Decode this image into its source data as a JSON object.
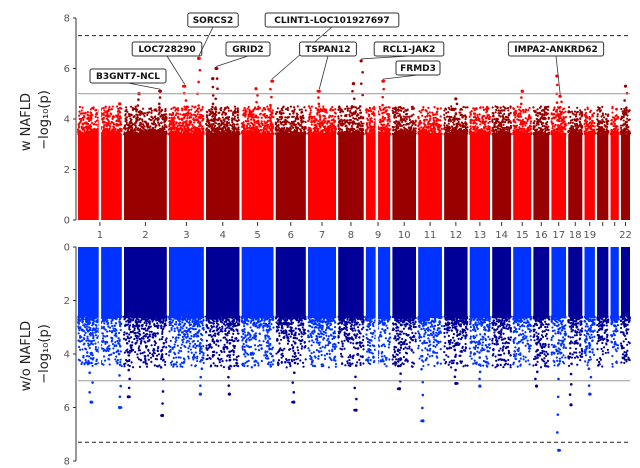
{
  "chart_data": [
    {
      "type": "scatter",
      "subtype": "manhattan",
      "name": "top",
      "ylabel_line1": "w NAFLD",
      "ylabel_line2": "−log₁₀(p)",
      "ylim": [
        0,
        8
      ],
      "yticks": [
        "0",
        "2",
        "4",
        "6",
        "8"
      ],
      "suggestive_line": 5,
      "significance_line": 7.3,
      "palette": [
        "#ff0000",
        "#990000"
      ],
      "peaks": [
        {
          "chr": 1,
          "pos": 0.95,
          "val": 4.6
        },
        {
          "chr": 2,
          "pos": 0.35,
          "val": 5.0
        },
        {
          "chr": 2,
          "pos": 0.85,
          "val": 5.1
        },
        {
          "chr": 3,
          "pos": 0.45,
          "val": 5.3
        },
        {
          "chr": 3,
          "pos": 0.85,
          "val": 6.4
        },
        {
          "chr": 4,
          "pos": 0.2,
          "val": 5.6
        },
        {
          "chr": 4,
          "pos": 0.3,
          "val": 6.0
        },
        {
          "chr": 5,
          "pos": 0.45,
          "val": 5.2
        },
        {
          "chr": 5,
          "pos": 0.95,
          "val": 5.5
        },
        {
          "chr": 7,
          "pos": 0.4,
          "val": 5.1
        },
        {
          "chr": 8,
          "pos": 0.6,
          "val": 5.4
        },
        {
          "chr": 8,
          "pos": 0.9,
          "val": 6.3
        },
        {
          "chr": 9,
          "pos": 0.7,
          "val": 5.5
        },
        {
          "chr": 12,
          "pos": 0.5,
          "val": 4.8
        },
        {
          "chr": 15,
          "pos": 0.5,
          "val": 5.1
        },
        {
          "chr": 17,
          "pos": 0.4,
          "val": 5.7
        },
        {
          "chr": 17,
          "pos": 0.6,
          "val": 4.9
        },
        {
          "chr": 22,
          "pos": 0.5,
          "val": 5.3
        }
      ]
    },
    {
      "type": "scatter",
      "subtype": "manhattan",
      "name": "bottom",
      "ylabel_line1": "w/o NAFLD",
      "ylabel_line2": "−log₁₀(p)",
      "ylim": [
        0,
        8
      ],
      "y_inverted": true,
      "yticks": [
        "0",
        "2",
        "4",
        "6",
        "8"
      ],
      "suggestive_line": 5,
      "significance_line": 7.3,
      "palette": [
        "#0033ff",
        "#000099"
      ],
      "peaks": [
        {
          "chr": 1,
          "pos": 0.3,
          "val": 5.8
        },
        {
          "chr": 1,
          "pos": 0.95,
          "val": 6.0
        },
        {
          "chr": 2,
          "pos": 0.1,
          "val": 5.6
        },
        {
          "chr": 2,
          "pos": 0.9,
          "val": 6.3
        },
        {
          "chr": 3,
          "pos": 0.9,
          "val": 5.5
        },
        {
          "chr": 4,
          "pos": 0.7,
          "val": 5.5
        },
        {
          "chr": 6,
          "pos": 0.6,
          "val": 5.8
        },
        {
          "chr": 8,
          "pos": 0.7,
          "val": 6.1
        },
        {
          "chr": 10,
          "pos": 0.3,
          "val": 5.3
        },
        {
          "chr": 11,
          "pos": 0.2,
          "val": 6.5
        },
        {
          "chr": 12,
          "pos": 0.5,
          "val": 5.1
        },
        {
          "chr": 13,
          "pos": 0.5,
          "val": 5.2
        },
        {
          "chr": 16,
          "pos": 0.2,
          "val": 5.2
        },
        {
          "chr": 17,
          "pos": 0.5,
          "val": 7.6
        },
        {
          "chr": 18,
          "pos": 0.2,
          "val": 5.9
        },
        {
          "chr": 19,
          "pos": 0.5,
          "val": 5.5
        }
      ]
    }
  ],
  "chromosomes": [
    "1",
    "2",
    "3",
    "4",
    "5",
    "6",
    "7",
    "8",
    "9",
    "10",
    "11",
    "12",
    "13",
    "14",
    "15",
    "16",
    "17",
    "18",
    "19",
    "",
    "",
    "22"
  ],
  "chrom_sizes": [
    249,
    243,
    198,
    190,
    181,
    171,
    159,
    145,
    138,
    134,
    135,
    133,
    115,
    107,
    102,
    90,
    83,
    80,
    59,
    64,
    47,
    51
  ],
  "annotations": [
    {
      "label": "B3GNT7-NCL",
      "chr": 2,
      "pos": 0.85,
      "val": 5.1
    },
    {
      "label": "LOC728290",
      "chr": 3,
      "pos": 0.45,
      "val": 5.3
    },
    {
      "label": "SORCS2",
      "chr": 3,
      "pos": 0.85,
      "val": 6.4
    },
    {
      "label": "GRID2",
      "chr": 4,
      "pos": 0.3,
      "val": 6.0
    },
    {
      "label": "CLINT1-LOC101927697",
      "chr": 5,
      "pos": 0.95,
      "val": 5.5
    },
    {
      "label": "TSPAN12",
      "chr": 7,
      "pos": 0.4,
      "val": 5.1
    },
    {
      "label": "RCL1-JAK2",
      "chr": 8,
      "pos": 0.9,
      "val": 6.3
    },
    {
      "label": "FRMD3",
      "chr": 9,
      "pos": 0.7,
      "val": 5.5
    },
    {
      "label": "IMPA2-ANKRD62",
      "chr": 17,
      "pos": 0.6,
      "val": 4.9
    }
  ]
}
